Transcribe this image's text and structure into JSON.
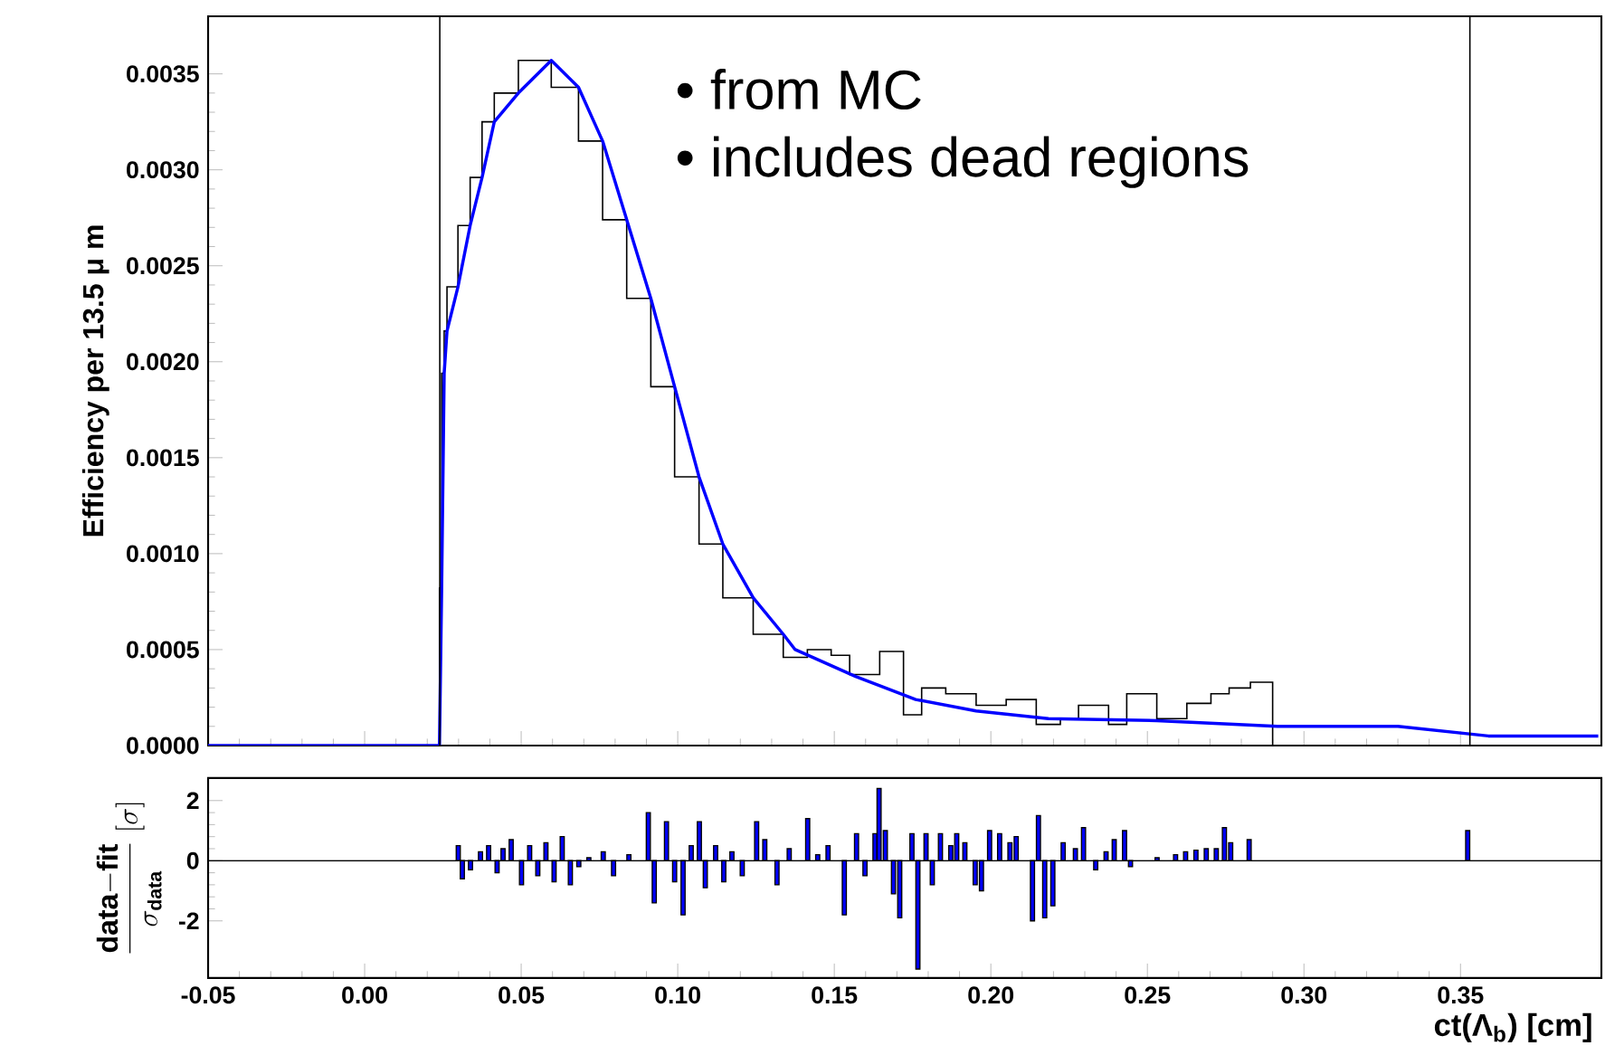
{
  "chart_data": [
    {
      "type": "line",
      "ylabel": "Efficiency per 13.5 μ m",
      "xlim": [
        -0.05,
        0.395
      ],
      "ylim": [
        0,
        0.0038
      ],
      "xticks": [
        {
          "value": -0.05,
          "label": null
        },
        {
          "value": 0,
          "label": null
        },
        {
          "value": 0.05,
          "label": null
        },
        {
          "value": 0.1,
          "label": null
        },
        {
          "value": 0.15,
          "label": null
        },
        {
          "value": 0.2,
          "label": null
        },
        {
          "value": 0.25,
          "label": null
        },
        {
          "value": 0.3,
          "label": null
        },
        {
          "value": 0.35,
          "label": null
        }
      ],
      "yticks": [
        {
          "value": 0,
          "label": "0.0000"
        },
        {
          "value": 0.0005,
          "label": "0.0005"
        },
        {
          "value": 0.001,
          "label": "0.0010"
        },
        {
          "value": 0.0015,
          "label": "0.0015"
        },
        {
          "value": 0.002,
          "label": "0.0020"
        },
        {
          "value": 0.0025,
          "label": "0.0025"
        },
        {
          "value": 0.003,
          "label": "0.0030"
        },
        {
          "value": 0.0035,
          "label": "0.0035"
        }
      ],
      "tick_labels": "y",
      "series": [
        {
          "type": "step",
          "color": "#000000",
          "x": [
            -0.05,
            0.0239,
            0.0246,
            0.0254,
            0.0263,
            0.0298,
            0.0337,
            0.0375,
            0.0414,
            0.0491,
            0.0596,
            0.0683,
            0.076,
            0.0837,
            0.0914,
            0.099,
            0.1068,
            0.1144,
            0.1241,
            0.1337,
            0.1414,
            0.149,
            0.1549,
            0.1645,
            0.1721,
            0.1779,
            0.1856,
            0.1953,
            0.2049,
            0.2145,
            0.2222,
            0.228,
            0.2376,
            0.2434,
            0.253,
            0.2626,
            0.2703,
            0.2761,
            0.2829,
            0.29,
            0.395
          ],
          "values": [
            0,
            0.00082,
            0.00194,
            0.00216,
            0.00239,
            0.00271,
            0.00296,
            0.00325,
            0.0034,
            0.00357,
            0.00343,
            0.00315,
            0.00274,
            0.00233,
            0.00187,
            0.0014,
            0.00105,
            0.00077,
            0.00058,
            0.00046,
            0.0005,
            0.00047,
            0.00037,
            0.00049,
            0.00016,
            0.0003,
            0.00027,
            0.00021,
            0.00024,
            0.00011,
            0.00014,
            0.00021,
            0.00011,
            0.00027,
            0.00014,
            0.00022,
            0.00027,
            0.0003,
            0.00033,
            0,
            0
          ]
        },
        {
          "type": "line",
          "color": "#0000ff",
          "x": [
            -0.05,
            0.0239,
            0.0246,
            0.0254,
            0.0263,
            0.0298,
            0.0337,
            0.0375,
            0.0414,
            0.0491,
            0.0596,
            0.0683,
            0.076,
            0.0837,
            0.0914,
            0.099,
            0.1068,
            0.1144,
            0.1241,
            0.1337,
            0.1375,
            0.1568,
            0.176,
            0.1953,
            0.2184,
            0.253,
            0.2915,
            0.33,
            0.3589,
            0.394
          ],
          "values": [
            0,
            0,
            0.00082,
            0.00194,
            0.00216,
            0.00239,
            0.00271,
            0.00296,
            0.00325,
            0.0034,
            0.00357,
            0.00343,
            0.00315,
            0.00274,
            0.00233,
            0.00187,
            0.0014,
            0.00105,
            0.00077,
            0.00058,
            0.0005,
            0.00036,
            0.00024,
            0.00018,
            0.00014,
            0.00013,
            0.0001,
            0.0001,
            5e-05,
            5e-05
          ]
        }
      ],
      "ref_lines": [
        {
          "axis": "x",
          "value": 0.024,
          "color": "#000000"
        },
        {
          "axis": "x",
          "value": 0.353,
          "color": "#000000"
        }
      ],
      "annotations": [
        "• from MC",
        "• includes dead regions"
      ]
    },
    {
      "type": "bar",
      "xlabel": "ct(Λ$_{b}$) [cm]",
      "ylabel": "\\frac{\\mathbf{data{-}fit}}{\\sigma_{\\mathbf{data}}}\\;[\\sigma]",
      "xlim": [
        -0.05,
        0.395
      ],
      "ylim": [
        -3.9,
        2.75
      ],
      "xticks": [
        {
          "value": -0.05,
          "label": "-0.05"
        },
        {
          "value": 0,
          "label": "0.00"
        },
        {
          "value": 0.05,
          "label": "0.05"
        },
        {
          "value": 0.1,
          "label": "0.10"
        },
        {
          "value": 0.15,
          "label": "0.15"
        },
        {
          "value": 0.2,
          "label": "0.20"
        },
        {
          "value": 0.25,
          "label": "0.25"
        },
        {
          "value": 0.3,
          "label": "0.30"
        },
        {
          "value": 0.35,
          "label": "0.35"
        }
      ],
      "yticks": [
        -2,
        0,
        2
      ],
      "color": "#0000ff",
      "x": [
        0.0299,
        0.0312,
        0.0338,
        0.037,
        0.0396,
        0.0423,
        0.0442,
        0.0468,
        0.0501,
        0.0527,
        0.0553,
        0.0579,
        0.0605,
        0.0631,
        0.0657,
        0.0684,
        0.0716,
        0.0762,
        0.0795,
        0.0844,
        0.0906,
        0.0925,
        0.0964,
        0.099,
        0.1017,
        0.1043,
        0.1069,
        0.1088,
        0.1121,
        0.1147,
        0.1173,
        0.1206,
        0.1252,
        0.1278,
        0.1317,
        0.1356,
        0.1415,
        0.1447,
        0.148,
        0.1532,
        0.1571,
        0.1598,
        0.163,
        0.1643,
        0.1663,
        0.1689,
        0.1709,
        0.1748,
        0.1767,
        0.1793,
        0.1813,
        0.1839,
        0.1872,
        0.1891,
        0.1917,
        0.195,
        0.197,
        0.1996,
        0.2028,
        0.2061,
        0.2081,
        0.2133,
        0.2152,
        0.2172,
        0.2198,
        0.2231,
        0.227,
        0.2296,
        0.2335,
        0.2368,
        0.2394,
        0.2427,
        0.2446,
        0.2531,
        0.259,
        0.2622,
        0.2655,
        0.2688,
        0.272,
        0.2746,
        0.2766,
        0.2825,
        0.3523
      ],
      "values": [
        0.5,
        -0.6,
        -0.3,
        0.3,
        0.5,
        -0.4,
        0.4,
        0.7,
        -0.8,
        0.5,
        -0.5,
        0.6,
        -0.7,
        0.8,
        -0.8,
        -0.2,
        0.1,
        0.3,
        -0.5,
        0.2,
        1.6,
        -1.4,
        1.3,
        -0.7,
        -1.8,
        0.5,
        1.3,
        -0.9,
        0.5,
        -0.7,
        0.3,
        -0.5,
        1.3,
        0.7,
        -0.8,
        0.4,
        1.4,
        0.2,
        0.5,
        -1.8,
        0.9,
        -0.5,
        0.9,
        2.4,
        1.0,
        -1.1,
        -1.9,
        0.9,
        -3.6,
        0.9,
        -0.8,
        0.9,
        0.5,
        0.9,
        0.6,
        -0.8,
        -1.0,
        1.0,
        0.9,
        0.6,
        0.8,
        -2.0,
        1.5,
        -1.9,
        -1.5,
        0.6,
        0.4,
        1.1,
        -0.3,
        0.3,
        0.7,
        1.0,
        -0.2,
        0.1,
        0.2,
        0.3,
        0.35,
        0.4,
        0.4,
        1.1,
        0.6,
        0.7,
        1.0
      ],
      "ref_lines": [
        {
          "axis": "y",
          "value": 0,
          "color": "#000000"
        }
      ]
    }
  ]
}
